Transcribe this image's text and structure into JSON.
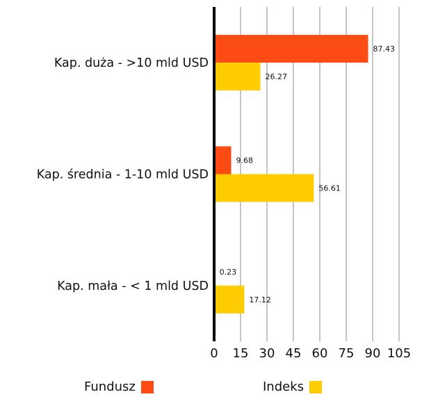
{
  "chart_data": {
    "type": "bar",
    "orientation": "horizontal",
    "categories": [
      "Kap. duża - >10 mld USD",
      "Kap. średnia - 1-10 mld USD",
      "Kap. mała - < 1 mld USD"
    ],
    "series": [
      {
        "name": "Fundusz",
        "values": [
          87.43,
          9.68,
          0.23
        ],
        "color": "#fc4c14"
      },
      {
        "name": "Indeks",
        "values": [
          26.27,
          56.61,
          17.12
        ],
        "color": "#ffcc00"
      }
    ],
    "xlim": [
      0,
      105
    ],
    "xticks": [
      "0",
      "15",
      "30",
      "45",
      "60",
      "75",
      "90",
      "105"
    ],
    "grid": true,
    "legend_position": "bottom"
  }
}
